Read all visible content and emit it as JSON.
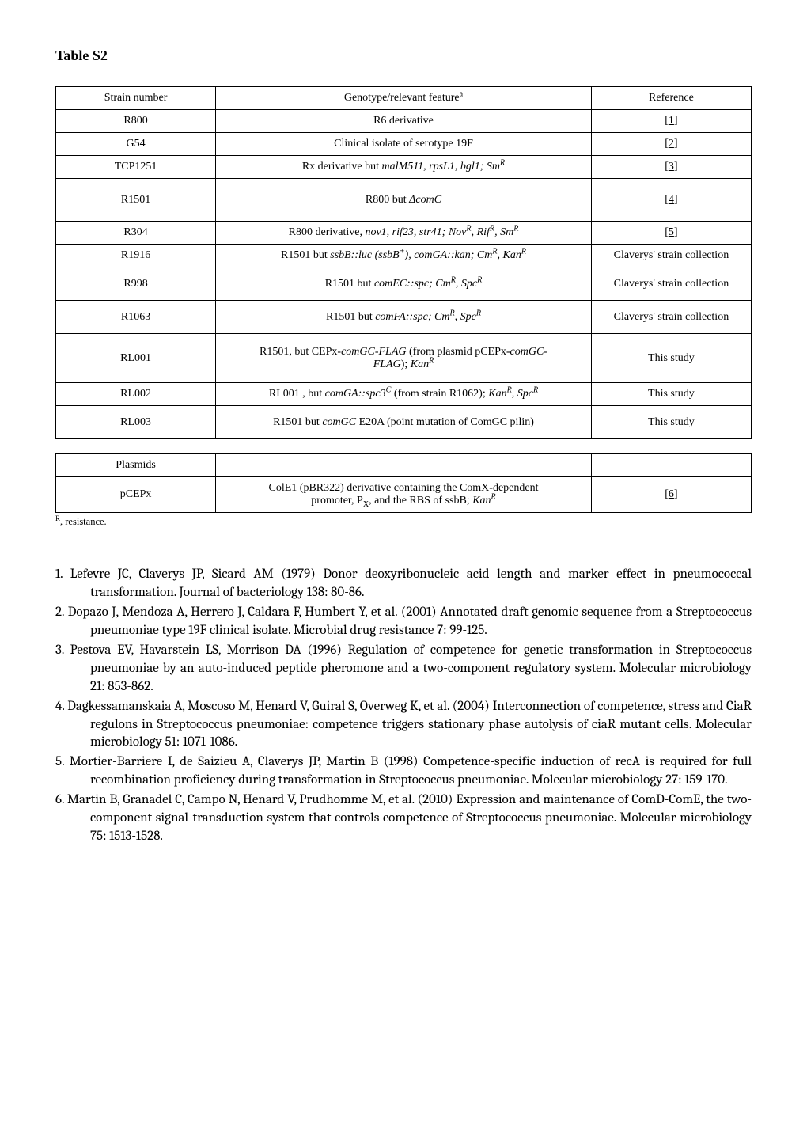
{
  "title": "Table S2",
  "table1": {
    "headers": [
      "Strain number",
      "Genotype/relevant feature",
      "Reference"
    ],
    "header_sup": "a",
    "rows": [
      {
        "c1": "R800",
        "c2_html": "R6 derivative",
        "c3_html": "[<span class='ref-link'>1</span>]",
        "cls": ""
      },
      {
        "c1": "G54",
        "c2_html": "Clinical isolate of serotype 19F",
        "c3_html": "[<span class='ref-link'>2</span>]",
        "cls": ""
      },
      {
        "c1": "TCP1251",
        "c2_html": "Rx derivative but <span class='ital'>malM511, rpsL1, bgl1; Sm<sup>R</sup></span>",
        "c3_html": "[<span class='ref-link'>3</span>]",
        "cls": ""
      },
      {
        "c1": "R1501",
        "c2_html": "R800 but <span class='ital'>ΔcomC</span>",
        "c3_html": "[<span class='ref-link'>4</span>]",
        "cls": "tall"
      },
      {
        "c1": "R304",
        "c2_html": "R800 derivative, <span class='ital'>nov1, rif23, str41; Nov<sup>R</sup>, Rif<sup>R</sup>, Sm<sup>R</sup></span>",
        "c3_html": "[<span class='ref-link'>5</span>]",
        "cls": ""
      },
      {
        "c1": "R1916",
        "c2_html": "R1501 but <span class='ital'>ssbB::luc (ssbB<sup>+</sup>), comGA::kan; Cm<sup>R</sup>, Kan<sup>R</sup></span>",
        "c3_html": "Claverys' strain collection",
        "cls": ""
      },
      {
        "c1": "R998",
        "c2_html": "R1501 but <span class='ital'>comEC::spc; Cm<sup>R</sup>, Spc<sup>R</sup></span>",
        "c3_html": "Claverys' strain collection",
        "cls": "med"
      },
      {
        "c1": "R1063",
        "c2_html": "R1501 but <span class='ital'>comFA::spc; Cm<sup>R</sup>, Spc<sup>R</sup></span>",
        "c3_html": "Claverys' strain collection",
        "cls": "med"
      },
      {
        "c1": "RL001",
        "c2_html": "R1501, but CEPx-<span class='ital'>comGC-FLAG</span> (from plasmid pCEPx-<span class='ital'>comGC-<br>FLAG</span>); <span class='ital'>Kan<sup>R</sup></span>",
        "c3_html": "This study",
        "cls": "taller"
      },
      {
        "c1": "RL002",
        "c2_html": "RL001 , but <span class='ital'>comGA::spc3<sup>C</sup></span> (from strain R1062); <span class='ital'>Kan<sup>R</sup>, Spc<sup>R</sup></span>",
        "c3_html": "This study",
        "cls": ""
      },
      {
        "c1": "RL003",
        "c2_html": "R1501 but <span class='ital'>comGC</span> E20A (point mutation of ComGC pilin)",
        "c3_html": "This study",
        "cls": "med"
      }
    ]
  },
  "table2": {
    "header": "Plasmids",
    "rows": [
      {
        "c1": "pCEPx",
        "c2_html": "ColE1 (pBR322) derivative containing the ComX-dependent<br>promoter, P<sub>X</sub>, and the RBS of ssbB; <span class='ital'>Kan<sup>R</sup></span>",
        "c3_html": "[<span class='ref-link'>6</span>]",
        "cls": "med"
      }
    ]
  },
  "footnote_html": "<sup>R</sup>, resistance.",
  "references": [
    "1. Lefevre JC, Claverys JP, Sicard AM (1979) Donor deoxyribonucleic acid length and marker effect in pneumococcal transformation. Journal of bacteriology 138: 80-86.",
    "2. Dopazo J, Mendoza A, Herrero J, Caldara F, Humbert Y, et al. (2001) Annotated draft genomic sequence from a Streptococcus pneumoniae type 19F clinical isolate. Microbial drug resistance 7: 99-125.",
    "3. Pestova EV, Havarstein LS, Morrison DA (1996) Regulation of competence for genetic transformation in Streptococcus pneumoniae by an auto-induced peptide pheromone and a two-component regulatory system. Molecular microbiology 21: 853-862.",
    "4. Dagkessamanskaia A, Moscoso M, Henard V, Guiral S, Overweg K, et al. (2004) Interconnection of competence, stress and CiaR regulons in Streptococcus pneumoniae: competence triggers stationary phase autolysis of ciaR mutant cells. Molecular microbiology 51: 1071-1086.",
    "5. Mortier-Barriere I, de Saizieu A, Claverys JP, Martin B (1998) Competence-specific induction of recA is required for full recombination proficiency during transformation in Streptococcus pneumoniae. Molecular microbiology 27: 159-170.",
    "6. Martin B, Granadel C, Campo N, Henard V, Prudhomme M, et al. (2010) Expression and maintenance of ComD-ComE, the two-component signal-transduction system that controls competence of Streptococcus pneumoniae. Molecular microbiology 75: 1513-1528."
  ]
}
